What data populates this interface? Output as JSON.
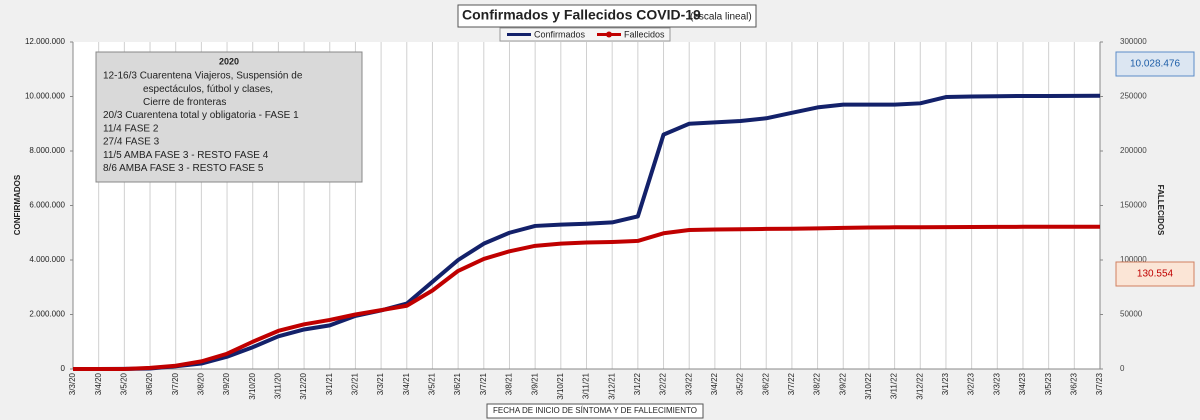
{
  "chart_data": {
    "type": "line",
    "title": "Confirmados  y Fallecidos  COVID-19",
    "subtitle": "(escala lineal)",
    "x_label": "FECHA DE INICIO DE SÍNTOMA  Y DE FALLECIMIENTO",
    "y_label": "CONFIRMADOS",
    "y2_label": "FALLECIDOS",
    "categories": [
      "3/3/20",
      "3/4/20",
      "3/5/20",
      "3/6/20",
      "3/7/20",
      "3/8/20",
      "3/9/20",
      "3/10/20",
      "3/11/20",
      "3/12/20",
      "3/1/21",
      "3/2/21",
      "3/3/21",
      "3/4/21",
      "3/5/21",
      "3/6/21",
      "3/7/21",
      "3/8/21",
      "3/9/21",
      "3/10/21",
      "3/11/21",
      "3/12/21",
      "3/1/22",
      "3/2/22",
      "3/3/22",
      "3/4/22",
      "3/5/22",
      "3/6/22",
      "3/7/22",
      "3/8/22",
      "3/9/22",
      "3/10/22",
      "3/11/22",
      "3/12/22",
      "3/1/23",
      "3/2/23",
      "3/3/23",
      "3/4/23",
      "3/5/23",
      "3/6/23",
      "3/7/23"
    ],
    "series": [
      {
        "name": "Confirmados",
        "color": "#13216a",
        "axis": "y",
        "values": [
          0,
          0,
          5000,
          20000,
          100000,
          200000,
          450000,
          800000,
          1200000,
          1450000,
          1600000,
          1950000,
          2150000,
          2400000,
          3200000,
          4000000,
          4600000,
          5000000,
          5250000,
          5300000,
          5330000,
          5380000,
          5600000,
          8600000,
          9000000,
          9050000,
          9100000,
          9200000,
          9400000,
          9600000,
          9700000,
          9700000,
          9700000,
          9750000,
          9980000,
          10000000,
          10010000,
          10020000,
          10020000,
          10025000,
          10028476
        ],
        "value_labels": [
          null,
          null,
          null,
          null,
          null,
          null,
          null,
          null,
          null,
          null,
          null,
          null,
          null,
          null,
          null,
          null,
          null,
          null,
          null,
          null,
          null,
          null,
          null,
          null,
          null,
          null,
          null,
          null,
          null,
          null,
          null,
          null,
          null,
          null,
          null,
          null,
          null,
          null,
          null,
          null,
          "10.028.476"
        ]
      },
      {
        "name": "Fallecidos",
        "color": "#c00000",
        "axis": "y2",
        "values": [
          0,
          0,
          0,
          1000,
          3000,
          7000,
          14000,
          25000,
          35000,
          41000,
          45000,
          50000,
          54000,
          58000,
          72000,
          90000,
          101000,
          108000,
          113000,
          115000,
          116000,
          116500,
          117500,
          124500,
          127500,
          128000,
          128200,
          128500,
          128700,
          129000,
          129500,
          129800,
          130000,
          130100,
          130200,
          130300,
          130400,
          130450,
          130500,
          130530,
          130554
        ],
        "value_labels": [
          null,
          null,
          null,
          null,
          null,
          null,
          null,
          null,
          null,
          null,
          null,
          null,
          null,
          null,
          null,
          null,
          null,
          null,
          null,
          null,
          null,
          null,
          null,
          null,
          null,
          null,
          null,
          null,
          null,
          null,
          null,
          null,
          null,
          null,
          null,
          null,
          null,
          null,
          null,
          null,
          "130.554"
        ]
      }
    ],
    "ylim": [
      0,
      12000000
    ],
    "yticks": [
      0,
      {
        "value": 2000000,
        "label": "2.000.000"
      },
      {
        "value": 4000000,
        "label": "4.000.000"
      },
      {
        "value": 6000000,
        "label": "6.000.000"
      },
      {
        "value": 8000000,
        "label": "8.000.000"
      },
      {
        "value": 10000000,
        "label": "10.000.000"
      },
      {
        "value": 12000000,
        "label": "12.000.000"
      }
    ],
    "y2lim": [
      0,
      300000
    ],
    "y2ticks": [
      0,
      50000,
      100000,
      150000,
      200000,
      250000,
      300000
    ],
    "grid": "vertical",
    "legend": "top",
    "annotation": {
      "title": "2020",
      "lines": [
        "12-16/3  Cuarentena Viajeros, Suspensión de",
        "espectáculos, fútbol y clases,",
        "Cierre de fronteras",
        "20/3  Cuarentena total y obligatoria - FASE 1",
        "11/4  FASE 2",
        "27/4  FASE 3",
        "11/5  AMBA FASE 3 - RESTO FASE 4",
        "8/6  AMBA FASE 3 - RESTO FASE 5"
      ]
    }
  }
}
